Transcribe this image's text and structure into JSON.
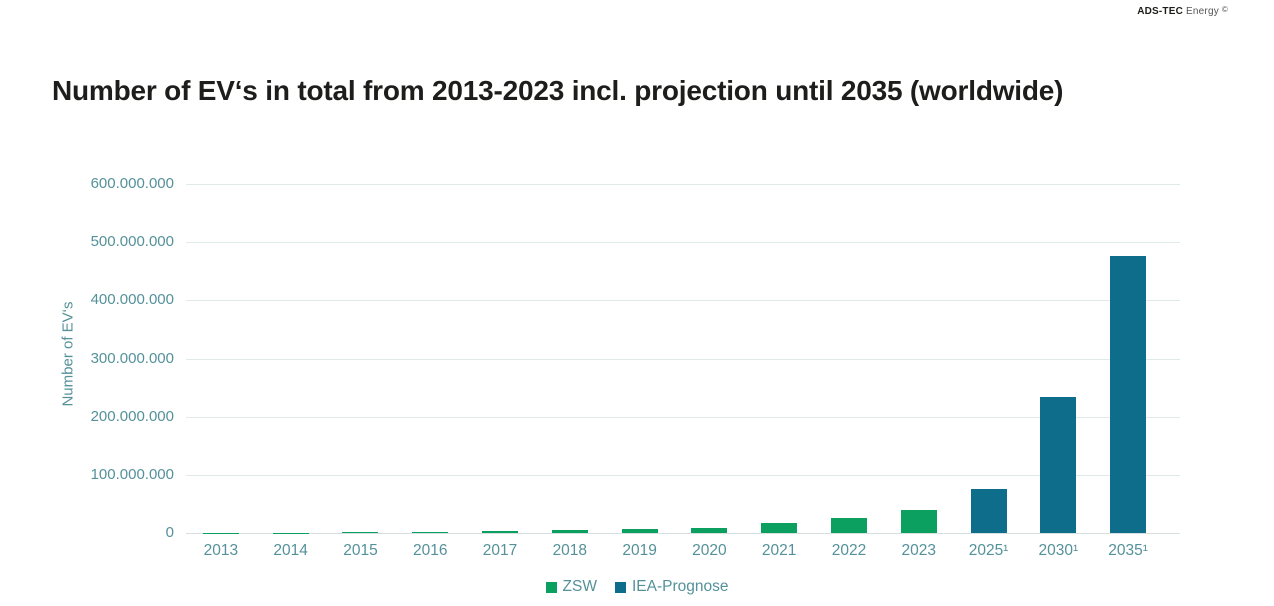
{
  "brand": {
    "name_bold": "ADS-TEC",
    "name_light": "Energy",
    "copyright": "©"
  },
  "title": "Number of EV‘s in total from 2013-2023 incl. projection until 2035 (worldwide)",
  "chart_data": {
    "type": "bar",
    "title": "Number of EV‘s in total from 2013-2023 incl. projection until 2035 (worldwide)",
    "xlabel": "",
    "ylabel": "Number of EV‘s",
    "ylim": [
      0,
      600000000
    ],
    "grid": true,
    "legend_position": "bottom-center",
    "yticks": [
      {
        "value": 0,
        "label": "0"
      },
      {
        "value": 100000000,
        "label": "100.000.000"
      },
      {
        "value": 200000000,
        "label": "200.000.000"
      },
      {
        "value": 300000000,
        "label": "300.000.000"
      },
      {
        "value": 400000000,
        "label": "400.000.000"
      },
      {
        "value": 500000000,
        "label": "500.000.000"
      },
      {
        "value": 600000000,
        "label": "600.000.000"
      }
    ],
    "categories": [
      "2013",
      "2014",
      "2015",
      "2016",
      "2017",
      "2018",
      "2019",
      "2020",
      "2021",
      "2022",
      "2023",
      "2025¹",
      "2030¹",
      "2035¹"
    ],
    "series": [
      {
        "name": "ZSW",
        "color": "#0ba05f",
        "values": [
          400000,
          750000,
          1300000,
          2000000,
          3200000,
          5000000,
          6500000,
          9000000,
          16500000,
          26000000,
          40000000,
          null,
          null,
          null
        ]
      },
      {
        "name": "IEA-Prognose",
        "color": "#0d6d8b",
        "values": [
          null,
          null,
          null,
          null,
          null,
          null,
          null,
          null,
          null,
          null,
          null,
          75000000,
          233000000,
          477000000
        ]
      }
    ]
  },
  "colors": {
    "zsw_green": "#0ba05f",
    "iea_teal": "#0d6d8b",
    "axis_text": "#54919a",
    "title_text": "#1d1d1b",
    "gridline": "#dfeaea"
  }
}
